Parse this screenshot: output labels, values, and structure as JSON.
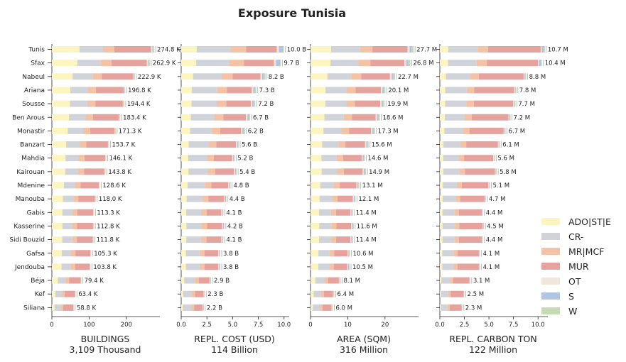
{
  "chart_data": {
    "type": "bar",
    "orientation": "horizontal",
    "stacked": true,
    "title": "Exposure Tunisia",
    "categories": [
      "Tunis",
      "Sfax",
      "Nabeul",
      "Ariana",
      "Sousse",
      "Ben Arous",
      "Monastir",
      "Banzart",
      "Mahdia",
      "Kairouan",
      "Mdenine",
      "Manouba",
      "Gabis",
      "Kasserine",
      "Sidi Bouzid",
      "Gafsa",
      "Jendouba",
      "Béja",
      "Kef",
      "Siliana"
    ],
    "legend": {
      "position": "right",
      "entries": [
        {
          "name": "ADO|ST|E",
          "color": "#fdf5c0"
        },
        {
          "name": "CR-",
          "color": "#d0d3d9"
        },
        {
          "name": "MR|MCF",
          "color": "#f4c2a4"
        },
        {
          "name": "MUR",
          "color": "#e6a39d"
        },
        {
          "name": "OT",
          "color": "#f1e6dc"
        },
        {
          "name": "S",
          "color": "#b0c4e4"
        },
        {
          "name": "W",
          "color": "#c5dbb3"
        }
      ]
    },
    "panels": [
      {
        "xlabel": "BUILDINGS",
        "subtitle": "3,109 Thousand",
        "xlim": [
          0,
          290
        ],
        "xticks": [
          0,
          100,
          200
        ],
        "xtick_labels": [
          "0",
          "100",
          "200"
        ],
        "totals": [
          274.8,
          262.9,
          222.9,
          196.8,
          194.4,
          183.4,
          171.3,
          153.7,
          146.1,
          143.8,
          128.6,
          118.0,
          113.3,
          112.8,
          111.8,
          105.3,
          103.8,
          79.4,
          63.4,
          58.8
        ],
        "total_labels": [
          "274.8 K",
          "262.9 K",
          "222.9 K",
          "196.8 K",
          "194.4 K",
          "183.4 K",
          "171.3 K",
          "153.7 K",
          "146.1 K",
          "143.8 K",
          "128.6 K",
          "118.0 K",
          "113.3 K",
          "112.8 K",
          "111.8 K",
          "105.3 K",
          "103.8 K",
          "79.4 K",
          "63.4 K",
          "58.8 K"
        ],
        "shares": [
          [
            0.27,
            0.23,
            0.11,
            0.36,
            0.01,
            0.005,
            0.015
          ],
          [
            0.26,
            0.24,
            0.11,
            0.36,
            0.01,
            0.005,
            0.015
          ],
          [
            0.25,
            0.24,
            0.11,
            0.38,
            0.005,
            0.005,
            0.01
          ],
          [
            0.25,
            0.24,
            0.11,
            0.38,
            0.005,
            0.005,
            0.01
          ],
          [
            0.25,
            0.24,
            0.11,
            0.38,
            0.005,
            0.005,
            0.01
          ],
          [
            0.25,
            0.24,
            0.11,
            0.38,
            0.005,
            0.005,
            0.01
          ],
          [
            0.25,
            0.24,
            0.11,
            0.38,
            0.005,
            0.005,
            0.01
          ],
          [
            0.25,
            0.24,
            0.11,
            0.38,
            0.005,
            0.005,
            0.01
          ],
          [
            0.25,
            0.24,
            0.11,
            0.38,
            0.005,
            0.005,
            0.01
          ],
          [
            0.25,
            0.24,
            0.11,
            0.38,
            0.005,
            0.005,
            0.01
          ],
          [
            0.25,
            0.24,
            0.11,
            0.38,
            0.005,
            0.005,
            0.01
          ],
          [
            0.25,
            0.24,
            0.11,
            0.38,
            0.005,
            0.005,
            0.01
          ],
          [
            0.25,
            0.24,
            0.11,
            0.38,
            0.005,
            0.005,
            0.01
          ],
          [
            0.25,
            0.24,
            0.11,
            0.38,
            0.005,
            0.005,
            0.01
          ],
          [
            0.25,
            0.24,
            0.11,
            0.38,
            0.005,
            0.005,
            0.01
          ],
          [
            0.25,
            0.24,
            0.11,
            0.38,
            0.005,
            0.005,
            0.01
          ],
          [
            0.25,
            0.24,
            0.11,
            0.38,
            0.005,
            0.005,
            0.01
          ],
          [
            0.2,
            0.26,
            0.12,
            0.4,
            0.005,
            0.005,
            0.01
          ],
          [
            0.15,
            0.27,
            0.12,
            0.44,
            0.005,
            0.005,
            0.01
          ],
          [
            0.12,
            0.28,
            0.12,
            0.46,
            0.005,
            0.005,
            0.01
          ]
        ]
      },
      {
        "xlabel": "REPL. COST (USD)",
        "subtitle": "114 Billion",
        "xlim": [
          0,
          10.5
        ],
        "xticks": [
          0,
          2.5,
          5.0,
          7.5,
          10.0
        ],
        "xtick_labels": [
          "0.0",
          "2.5",
          "5.0",
          "7.5",
          "10.0"
        ],
        "totals": [
          10.0,
          9.7,
          8.2,
          7.3,
          7.2,
          6.7,
          6.2,
          5.6,
          5.2,
          5.4,
          4.8,
          4.4,
          4.1,
          4.2,
          4.1,
          3.8,
          3.8,
          2.9,
          2.3,
          2.2
        ],
        "total_labels": [
          "10.0 B",
          "9.7 B",
          "8.2 B",
          "7.3 B",
          "7.2 B",
          "6.7 B",
          "6.2 B",
          "5.6 B",
          "5.2 B",
          "5.4 B",
          "4.8 B",
          "4.4 B",
          "4.1 B",
          "4.2 B",
          "4.1 B",
          "3.8 B",
          "3.8 B",
          "2.9 B",
          "2.3 B",
          "2.2 B"
        ],
        "shares": [
          [
            0.15,
            0.33,
            0.15,
            0.3,
            0.02,
            0.04,
            0.01
          ],
          [
            0.15,
            0.33,
            0.15,
            0.3,
            0.02,
            0.04,
            0.01
          ],
          [
            0.14,
            0.34,
            0.13,
            0.33,
            0.02,
            0.02,
            0.02
          ],
          [
            0.14,
            0.34,
            0.13,
            0.33,
            0.02,
            0.02,
            0.02
          ],
          [
            0.14,
            0.34,
            0.13,
            0.33,
            0.02,
            0.02,
            0.02
          ],
          [
            0.14,
            0.34,
            0.13,
            0.33,
            0.02,
            0.02,
            0.02
          ],
          [
            0.14,
            0.34,
            0.13,
            0.33,
            0.02,
            0.02,
            0.02
          ],
          [
            0.13,
            0.35,
            0.13,
            0.34,
            0.02,
            0.02,
            0.01
          ],
          [
            0.13,
            0.35,
            0.13,
            0.34,
            0.02,
            0.02,
            0.01
          ],
          [
            0.13,
            0.35,
            0.13,
            0.34,
            0.02,
            0.02,
            0.01
          ],
          [
            0.13,
            0.35,
            0.13,
            0.34,
            0.02,
            0.02,
            0.01
          ],
          [
            0.12,
            0.35,
            0.13,
            0.35,
            0.02,
            0.02,
            0.01
          ],
          [
            0.12,
            0.35,
            0.13,
            0.35,
            0.02,
            0.02,
            0.01
          ],
          [
            0.12,
            0.35,
            0.13,
            0.35,
            0.02,
            0.02,
            0.01
          ],
          [
            0.12,
            0.35,
            0.13,
            0.35,
            0.02,
            0.02,
            0.01
          ],
          [
            0.12,
            0.35,
            0.13,
            0.35,
            0.02,
            0.02,
            0.01
          ],
          [
            0.12,
            0.35,
            0.13,
            0.35,
            0.02,
            0.02,
            0.01
          ],
          [
            0.1,
            0.36,
            0.13,
            0.36,
            0.02,
            0.02,
            0.01
          ],
          [
            0.08,
            0.37,
            0.13,
            0.37,
            0.02,
            0.02,
            0.01
          ],
          [
            0.07,
            0.37,
            0.13,
            0.38,
            0.02,
            0.02,
            0.01
          ]
        ]
      },
      {
        "xlabel": "AREA (SQM)",
        "subtitle": "316 Million",
        "xlim": [
          0,
          29
        ],
        "xticks": [
          0,
          10,
          20
        ],
        "xtick_labels": [
          "0",
          "10",
          "20"
        ],
        "totals": [
          27.7,
          26.8,
          22.7,
          20.1,
          19.9,
          18.6,
          17.3,
          15.6,
          14.6,
          14.9,
          13.1,
          12.1,
          11.4,
          11.6,
          11.4,
          10.6,
          10.5,
          8.1,
          6.4,
          6.0
        ],
        "total_labels": [
          "27.7 M",
          "26.8 M",
          "22.7 M",
          "20.1 M",
          "19.9 M",
          "18.6 M",
          "17.3 M",
          "15.6 M",
          "14.6 M",
          "14.9 M",
          "13.1 M",
          "12.1 M",
          "11.4 M",
          "11.6 M",
          "11.4 M",
          "10.6 M",
          "10.5 M",
          "8.1 M",
          "6.4 M",
          "6.0 M"
        ],
        "shares": [
          [
            0.2,
            0.28,
            0.12,
            0.34,
            0.02,
            0.02,
            0.02
          ],
          [
            0.2,
            0.28,
            0.12,
            0.34,
            0.02,
            0.02,
            0.02
          ],
          [
            0.2,
            0.28,
            0.12,
            0.34,
            0.02,
            0.02,
            0.02
          ],
          [
            0.2,
            0.28,
            0.12,
            0.34,
            0.02,
            0.02,
            0.02
          ],
          [
            0.2,
            0.28,
            0.12,
            0.34,
            0.02,
            0.02,
            0.02
          ],
          [
            0.2,
            0.28,
            0.12,
            0.34,
            0.02,
            0.02,
            0.02
          ],
          [
            0.2,
            0.28,
            0.12,
            0.34,
            0.02,
            0.02,
            0.02
          ],
          [
            0.2,
            0.28,
            0.12,
            0.34,
            0.02,
            0.02,
            0.02
          ],
          [
            0.2,
            0.28,
            0.12,
            0.34,
            0.02,
            0.02,
            0.02
          ],
          [
            0.2,
            0.28,
            0.12,
            0.34,
            0.02,
            0.02,
            0.02
          ],
          [
            0.2,
            0.28,
            0.12,
            0.34,
            0.02,
            0.02,
            0.02
          ],
          [
            0.2,
            0.28,
            0.12,
            0.34,
            0.02,
            0.02,
            0.02
          ],
          [
            0.2,
            0.28,
            0.12,
            0.34,
            0.02,
            0.02,
            0.02
          ],
          [
            0.2,
            0.28,
            0.12,
            0.34,
            0.02,
            0.02,
            0.02
          ],
          [
            0.2,
            0.28,
            0.12,
            0.34,
            0.02,
            0.02,
            0.02
          ],
          [
            0.2,
            0.28,
            0.12,
            0.34,
            0.02,
            0.02,
            0.02
          ],
          [
            0.2,
            0.28,
            0.12,
            0.34,
            0.02,
            0.02,
            0.02
          ],
          [
            0.16,
            0.3,
            0.12,
            0.36,
            0.02,
            0.02,
            0.02
          ],
          [
            0.13,
            0.31,
            0.12,
            0.38,
            0.02,
            0.02,
            0.02
          ],
          [
            0.1,
            0.32,
            0.12,
            0.4,
            0.02,
            0.02,
            0.02
          ]
        ]
      },
      {
        "xlabel": "REPL. CARBON TON",
        "subtitle": "122 Million",
        "xlim": [
          0,
          11
        ],
        "xticks": [
          0,
          2.5,
          5.0,
          7.5,
          10.0
        ],
        "xtick_labels": [
          "0.0",
          "2.5",
          "5.0",
          "7.5",
          "10.0"
        ],
        "totals": [
          10.7,
          10.4,
          8.8,
          7.8,
          7.7,
          7.2,
          6.7,
          6.1,
          5.6,
          5.8,
          5.1,
          4.7,
          4.4,
          4.5,
          4.4,
          4.1,
          4.1,
          3.1,
          2.5,
          2.3
        ],
        "total_labels": [
          "10.7 M",
          "10.4 M",
          "8.8 M",
          "7.8 M",
          "7.7 M",
          "7.2 M",
          "6.7 M",
          "6.1 M",
          "5.6 M",
          "5.8 M",
          "5.1 M",
          "4.7 M",
          "4.4 M",
          "4.5 M",
          "4.4 M",
          "4.1 M",
          "4.1 M",
          "3.1 M",
          "2.5 M",
          "2.3 M"
        ],
        "shares": [
          [
            0.08,
            0.28,
            0.1,
            0.5,
            0.01,
            0.02,
            0.01
          ],
          [
            0.08,
            0.28,
            0.1,
            0.5,
            0.01,
            0.02,
            0.01
          ],
          [
            0.07,
            0.28,
            0.1,
            0.52,
            0.01,
            0.01,
            0.01
          ],
          [
            0.07,
            0.28,
            0.1,
            0.52,
            0.01,
            0.01,
            0.01
          ],
          [
            0.07,
            0.28,
            0.1,
            0.52,
            0.01,
            0.01,
            0.01
          ],
          [
            0.07,
            0.28,
            0.1,
            0.52,
            0.01,
            0.01,
            0.01
          ],
          [
            0.07,
            0.28,
            0.1,
            0.52,
            0.01,
            0.01,
            0.01
          ],
          [
            0.06,
            0.28,
            0.1,
            0.53,
            0.01,
            0.01,
            0.01
          ],
          [
            0.06,
            0.28,
            0.1,
            0.53,
            0.01,
            0.01,
            0.01
          ],
          [
            0.06,
            0.28,
            0.1,
            0.53,
            0.01,
            0.01,
            0.01
          ],
          [
            0.06,
            0.28,
            0.1,
            0.53,
            0.01,
            0.01,
            0.01
          ],
          [
            0.06,
            0.28,
            0.1,
            0.53,
            0.01,
            0.01,
            0.01
          ],
          [
            0.06,
            0.28,
            0.1,
            0.53,
            0.01,
            0.01,
            0.01
          ],
          [
            0.06,
            0.28,
            0.1,
            0.53,
            0.01,
            0.01,
            0.01
          ],
          [
            0.06,
            0.28,
            0.1,
            0.53,
            0.01,
            0.01,
            0.01
          ],
          [
            0.06,
            0.28,
            0.1,
            0.53,
            0.01,
            0.01,
            0.01
          ],
          [
            0.06,
            0.28,
            0.1,
            0.53,
            0.01,
            0.01,
            0.01
          ],
          [
            0.05,
            0.29,
            0.1,
            0.53,
            0.01,
            0.01,
            0.01
          ],
          [
            0.04,
            0.3,
            0.1,
            0.53,
            0.01,
            0.01,
            0.01
          ],
          [
            0.04,
            0.3,
            0.1,
            0.53,
            0.01,
            0.01,
            0.01
          ]
        ]
      }
    ]
  }
}
